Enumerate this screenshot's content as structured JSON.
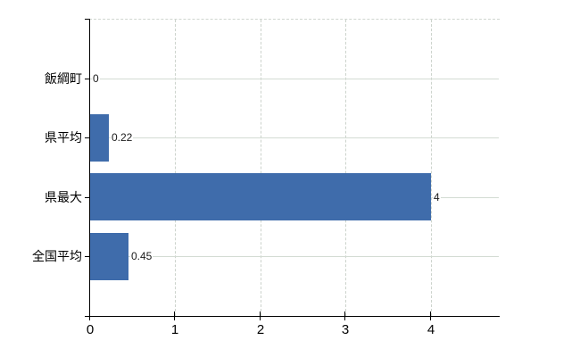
{
  "chart_data": {
    "type": "bar",
    "orientation": "horizontal",
    "title": "",
    "xlabel": "",
    "ylabel": "",
    "categories": [
      "飯綱町",
      "県平均",
      "県最大",
      "全国平均"
    ],
    "values": [
      0,
      0.22,
      4,
      0.45
    ],
    "value_labels": [
      "0",
      "0.22",
      "4",
      "0.45"
    ],
    "x_ticks": [
      0,
      1,
      2,
      3,
      4
    ],
    "x_tick_labels": [
      "0",
      "1",
      "2",
      "3",
      "4"
    ],
    "xlim": [
      0,
      4.8
    ],
    "grid": true,
    "legend": false,
    "bar_color": "#3f6cab",
    "axis_color": "#000000",
    "horizontal_grid_color": "#d3dbd3",
    "vertical_grid_color": "#ccd3cc",
    "background_color": "#ffffff"
  }
}
